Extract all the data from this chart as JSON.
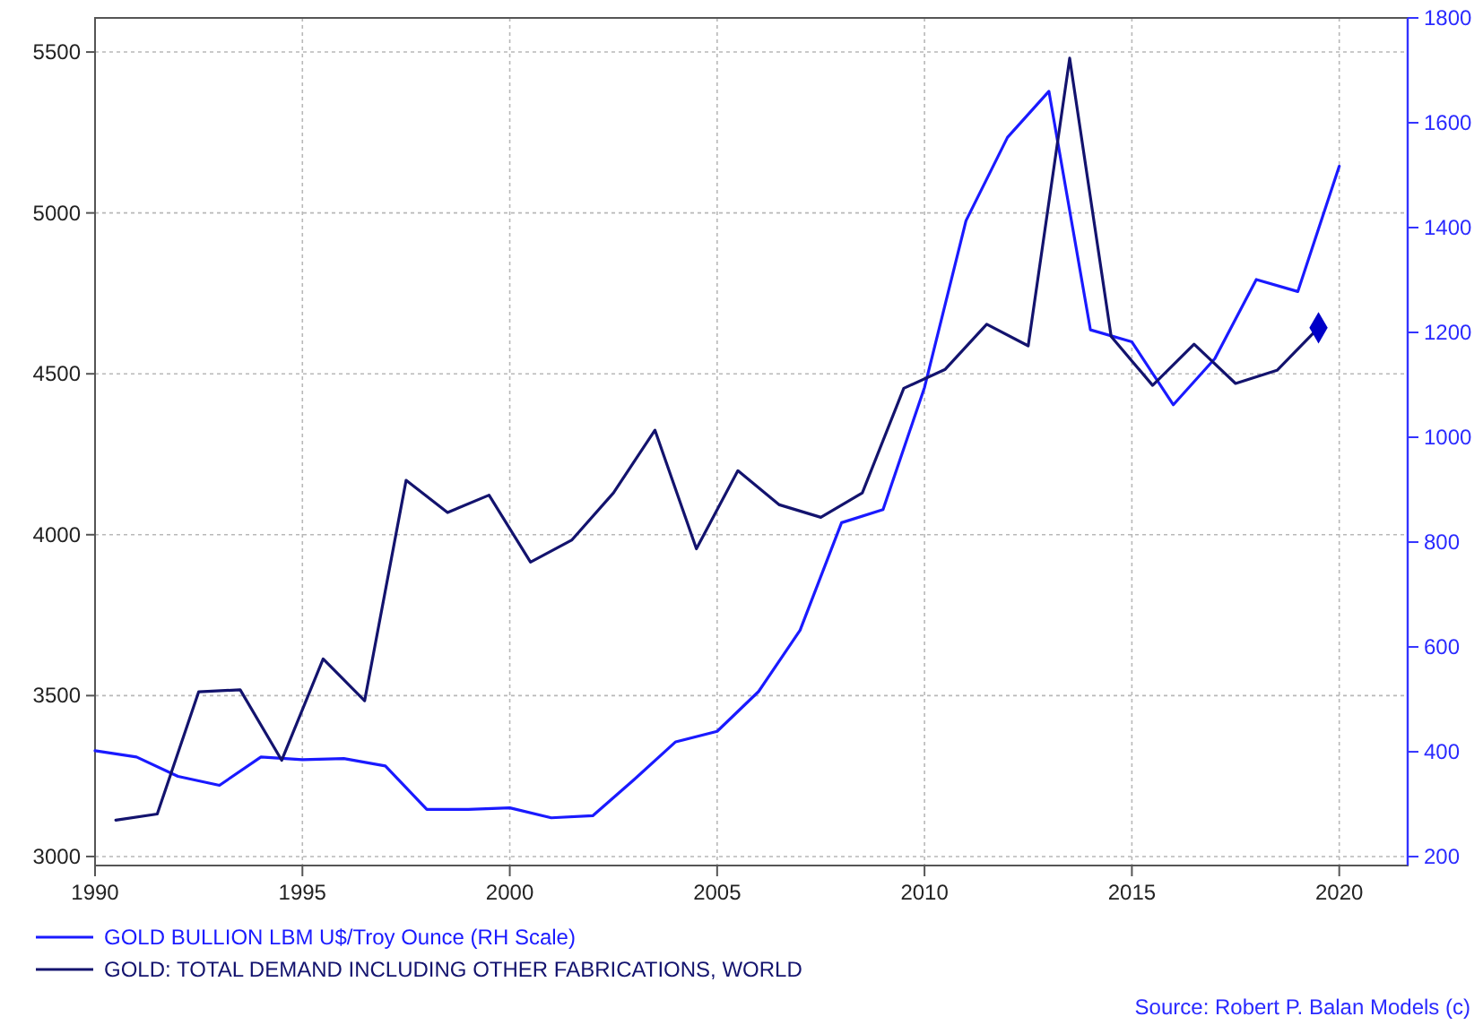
{
  "chart_data": {
    "type": "line",
    "xlim": [
      1990,
      2021.65
    ],
    "xticks": [
      1990,
      1995,
      2000,
      2005,
      2010,
      2015,
      2020
    ],
    "ylim": [
      2972,
      5606
    ],
    "yticks": [
      3000,
      3500,
      4000,
      4500,
      5000,
      5500
    ],
    "y2lim": [
      183,
      1800
    ],
    "y2ticks": [
      200,
      400,
      600,
      800,
      1000,
      1200,
      1400,
      1600,
      1800
    ],
    "grid": true,
    "legend": "bottom left",
    "marker": "none",
    "line_style": "solid",
    "series": [
      {
        "name": "GOLD BULLION LBM U$/Troy Ounce (RH Scale)",
        "color": "#1a1aff",
        "axis": "y2",
        "x": [
          1990,
          1991,
          1992,
          1993,
          1994,
          1995,
          1996,
          1997,
          1998,
          1999,
          2000,
          2001,
          2002,
          2003,
          2004,
          2005,
          2006,
          2007,
          2008,
          2009,
          2010,
          2011,
          2012,
          2013,
          2014,
          2015,
          2016,
          2017,
          2018,
          2019,
          2020
        ],
        "values": [
          402,
          390,
          353,
          336,
          390,
          385,
          387,
          373,
          290,
          290,
          293,
          274,
          278,
          347,
          419,
          439,
          515,
          632,
          837,
          862,
          1095,
          1413,
          1572,
          1660,
          1205,
          1182,
          1062,
          1150,
          1301,
          1278,
          1517
        ]
      },
      {
        "name": "GOLD: TOTAL DEMAND INCLUDING OTHER FABRICATIONS, WORLD",
        "color": "#13136e",
        "axis": "y",
        "x": [
          1990.5,
          1991.5,
          1992.5,
          1993.5,
          1994.5,
          1995.5,
          1996.5,
          1997.5,
          1998.5,
          1999.5,
          2000.5,
          2001.5,
          2002.5,
          2003.5,
          2004.5,
          2005.5,
          2006.5,
          2007.5,
          2008.5,
          2009.5,
          2010.5,
          2011.5,
          2012.5,
          2013.5,
          2014.5,
          2015.5,
          2016.5,
          2017.5,
          2018.5,
          2019.5
        ],
        "values": [
          3113,
          3132,
          3512,
          3518,
          3299,
          3614,
          3484,
          4169,
          4069,
          4123,
          3915,
          3984,
          4130,
          4325,
          3956,
          4199,
          4093,
          4054,
          4130,
          4455,
          4514,
          4654,
          4587,
          5481,
          4616,
          4464,
          4592,
          4470,
          4511,
          4643
        ]
      },
      {
        "type": "scatter",
        "marker": "diamond",
        "color": "#0000c8",
        "axis": "y",
        "x": [
          2019.5
        ],
        "values": [
          4643
        ]
      }
    ],
    "annotations": [
      "Source: Robert P. Balan Models (c)"
    ]
  }
}
